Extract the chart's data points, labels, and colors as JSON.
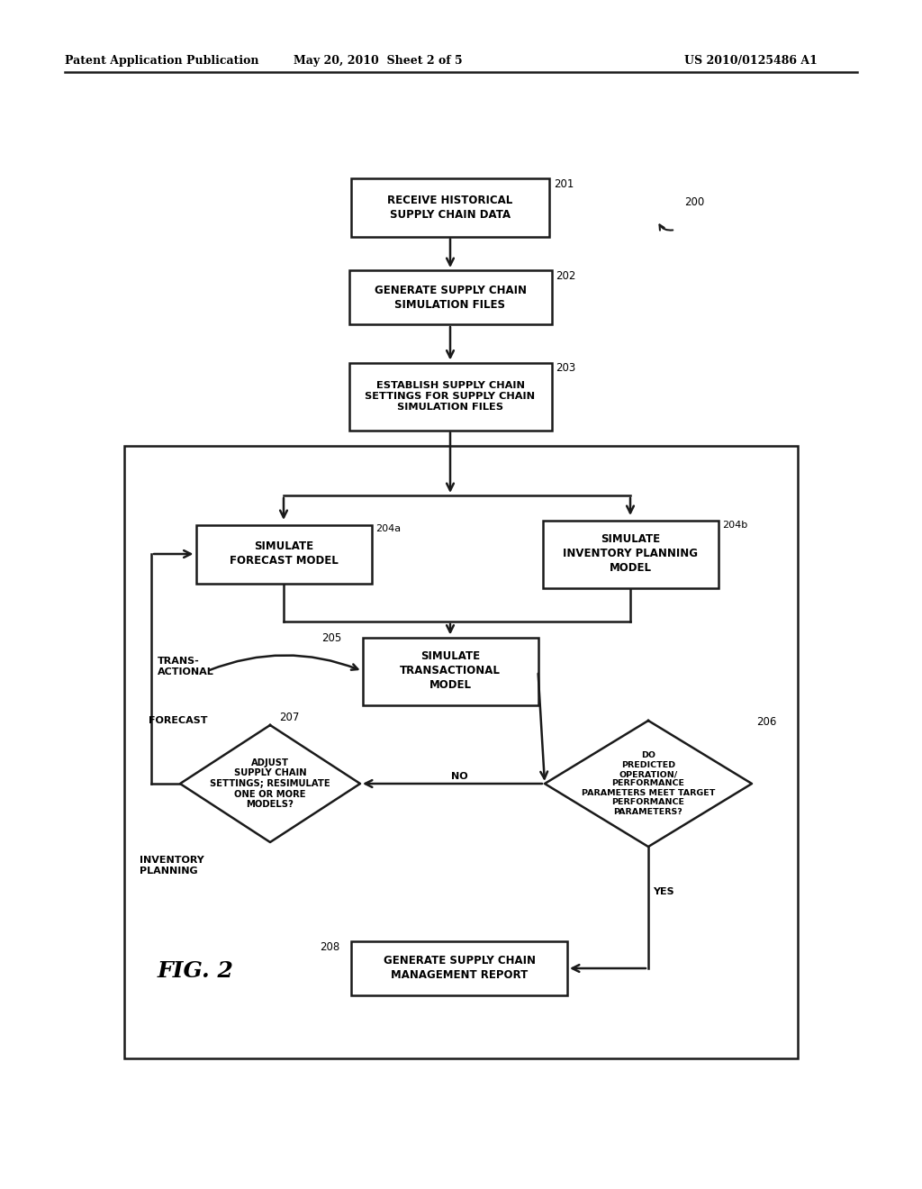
{
  "header_left": "Patent Application Publication",
  "header_mid": "May 20, 2010  Sheet 2 of 5",
  "header_right": "US 2010/0125486 A1",
  "bg_color": "#ffffff",
  "line_color": "#1a1a1a"
}
